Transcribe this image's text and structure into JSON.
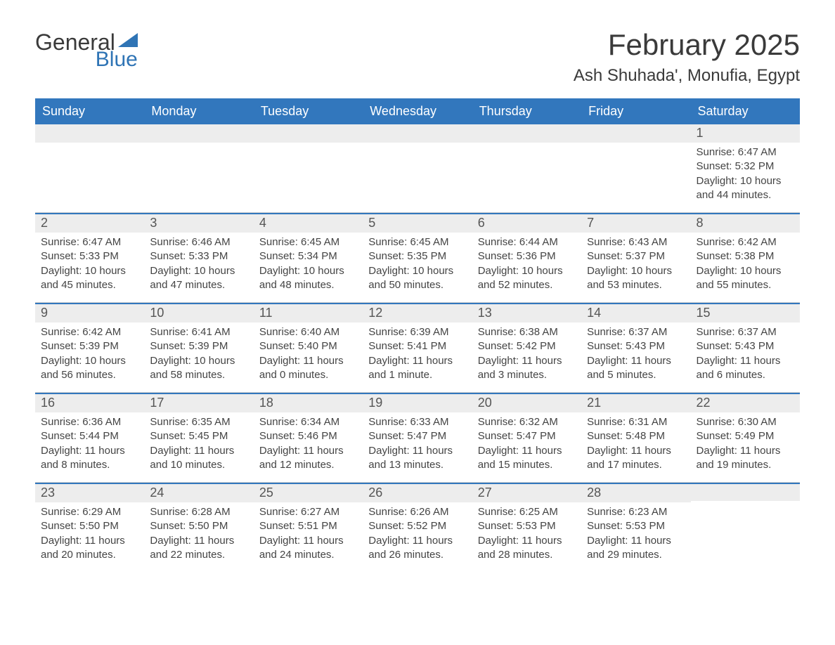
{
  "logo": {
    "top": "General",
    "bottom": "Blue",
    "accent_color": "#2f74b5"
  },
  "title": "February 2025",
  "location": "Ash Shuhada', Monufia, Egypt",
  "colors": {
    "header_bg": "#3277bd",
    "header_text": "#ffffff",
    "daybar_bg": "#ededed",
    "daybar_border": "#3277bd",
    "text": "#444444",
    "title_text": "#3a3a3a"
  },
  "day_headers": [
    "Sunday",
    "Monday",
    "Tuesday",
    "Wednesday",
    "Thursday",
    "Friday",
    "Saturday"
  ],
  "weeks": [
    [
      null,
      null,
      null,
      null,
      null,
      null,
      {
        "n": "1",
        "sr": "Sunrise: 6:47 AM",
        "ss": "Sunset: 5:32 PM",
        "dl": "Daylight: 10 hours and 44 minutes."
      }
    ],
    [
      {
        "n": "2",
        "sr": "Sunrise: 6:47 AM",
        "ss": "Sunset: 5:33 PM",
        "dl": "Daylight: 10 hours and 45 minutes."
      },
      {
        "n": "3",
        "sr": "Sunrise: 6:46 AM",
        "ss": "Sunset: 5:33 PM",
        "dl": "Daylight: 10 hours and 47 minutes."
      },
      {
        "n": "4",
        "sr": "Sunrise: 6:45 AM",
        "ss": "Sunset: 5:34 PM",
        "dl": "Daylight: 10 hours and 48 minutes."
      },
      {
        "n": "5",
        "sr": "Sunrise: 6:45 AM",
        "ss": "Sunset: 5:35 PM",
        "dl": "Daylight: 10 hours and 50 minutes."
      },
      {
        "n": "6",
        "sr": "Sunrise: 6:44 AM",
        "ss": "Sunset: 5:36 PM",
        "dl": "Daylight: 10 hours and 52 minutes."
      },
      {
        "n": "7",
        "sr": "Sunrise: 6:43 AM",
        "ss": "Sunset: 5:37 PM",
        "dl": "Daylight: 10 hours and 53 minutes."
      },
      {
        "n": "8",
        "sr": "Sunrise: 6:42 AM",
        "ss": "Sunset: 5:38 PM",
        "dl": "Daylight: 10 hours and 55 minutes."
      }
    ],
    [
      {
        "n": "9",
        "sr": "Sunrise: 6:42 AM",
        "ss": "Sunset: 5:39 PM",
        "dl": "Daylight: 10 hours and 56 minutes."
      },
      {
        "n": "10",
        "sr": "Sunrise: 6:41 AM",
        "ss": "Sunset: 5:39 PM",
        "dl": "Daylight: 10 hours and 58 minutes."
      },
      {
        "n": "11",
        "sr": "Sunrise: 6:40 AM",
        "ss": "Sunset: 5:40 PM",
        "dl": "Daylight: 11 hours and 0 minutes."
      },
      {
        "n": "12",
        "sr": "Sunrise: 6:39 AM",
        "ss": "Sunset: 5:41 PM",
        "dl": "Daylight: 11 hours and 1 minute."
      },
      {
        "n": "13",
        "sr": "Sunrise: 6:38 AM",
        "ss": "Sunset: 5:42 PM",
        "dl": "Daylight: 11 hours and 3 minutes."
      },
      {
        "n": "14",
        "sr": "Sunrise: 6:37 AM",
        "ss": "Sunset: 5:43 PM",
        "dl": "Daylight: 11 hours and 5 minutes."
      },
      {
        "n": "15",
        "sr": "Sunrise: 6:37 AM",
        "ss": "Sunset: 5:43 PM",
        "dl": "Daylight: 11 hours and 6 minutes."
      }
    ],
    [
      {
        "n": "16",
        "sr": "Sunrise: 6:36 AM",
        "ss": "Sunset: 5:44 PM",
        "dl": "Daylight: 11 hours and 8 minutes."
      },
      {
        "n": "17",
        "sr": "Sunrise: 6:35 AM",
        "ss": "Sunset: 5:45 PM",
        "dl": "Daylight: 11 hours and 10 minutes."
      },
      {
        "n": "18",
        "sr": "Sunrise: 6:34 AM",
        "ss": "Sunset: 5:46 PM",
        "dl": "Daylight: 11 hours and 12 minutes."
      },
      {
        "n": "19",
        "sr": "Sunrise: 6:33 AM",
        "ss": "Sunset: 5:47 PM",
        "dl": "Daylight: 11 hours and 13 minutes."
      },
      {
        "n": "20",
        "sr": "Sunrise: 6:32 AM",
        "ss": "Sunset: 5:47 PM",
        "dl": "Daylight: 11 hours and 15 minutes."
      },
      {
        "n": "21",
        "sr": "Sunrise: 6:31 AM",
        "ss": "Sunset: 5:48 PM",
        "dl": "Daylight: 11 hours and 17 minutes."
      },
      {
        "n": "22",
        "sr": "Sunrise: 6:30 AM",
        "ss": "Sunset: 5:49 PM",
        "dl": "Daylight: 11 hours and 19 minutes."
      }
    ],
    [
      {
        "n": "23",
        "sr": "Sunrise: 6:29 AM",
        "ss": "Sunset: 5:50 PM",
        "dl": "Daylight: 11 hours and 20 minutes."
      },
      {
        "n": "24",
        "sr": "Sunrise: 6:28 AM",
        "ss": "Sunset: 5:50 PM",
        "dl": "Daylight: 11 hours and 22 minutes."
      },
      {
        "n": "25",
        "sr": "Sunrise: 6:27 AM",
        "ss": "Sunset: 5:51 PM",
        "dl": "Daylight: 11 hours and 24 minutes."
      },
      {
        "n": "26",
        "sr": "Sunrise: 6:26 AM",
        "ss": "Sunset: 5:52 PM",
        "dl": "Daylight: 11 hours and 26 minutes."
      },
      {
        "n": "27",
        "sr": "Sunrise: 6:25 AM",
        "ss": "Sunset: 5:53 PM",
        "dl": "Daylight: 11 hours and 28 minutes."
      },
      {
        "n": "28",
        "sr": "Sunrise: 6:23 AM",
        "ss": "Sunset: 5:53 PM",
        "dl": "Daylight: 11 hours and 29 minutes."
      },
      null
    ]
  ]
}
